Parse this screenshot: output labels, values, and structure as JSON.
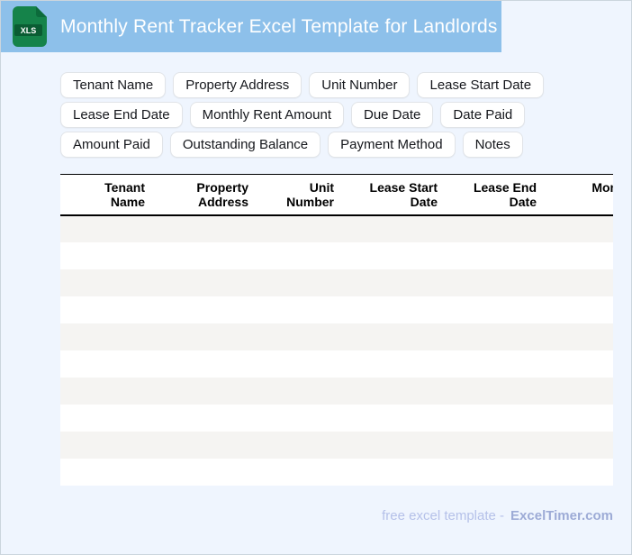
{
  "header": {
    "title": "Monthly Rent Tracker Excel Template for Landlords",
    "file_icon_label": "XLS"
  },
  "chips": [
    "Tenant Name",
    "Property Address",
    "Unit Number",
    "Lease Start Date",
    "Lease End Date",
    "Monthly Rent Amount",
    "Due Date",
    "Date Paid",
    "Amount Paid",
    "Outstanding Balance",
    "Payment Method",
    "Notes"
  ],
  "table": {
    "columns": [
      "Tenant Name",
      "Property Address",
      "Unit Number",
      "Lease Start Date",
      "Lease End Date",
      "Monthly Rent Amount"
    ],
    "empty_row_count": 10
  },
  "footer": {
    "text": "free excel template -",
    "brand": "ExcelTimer.com"
  },
  "colors": {
    "header_blue": "#8dc0ea",
    "page_background": "#eff5fe",
    "row_stripe_gray": "#f5f4f2",
    "icon_green": "#15834a",
    "icon_dark_green": "#0a5c33",
    "footer_text": "#b5c1e9",
    "footer_brand": "#9dabd6"
  }
}
